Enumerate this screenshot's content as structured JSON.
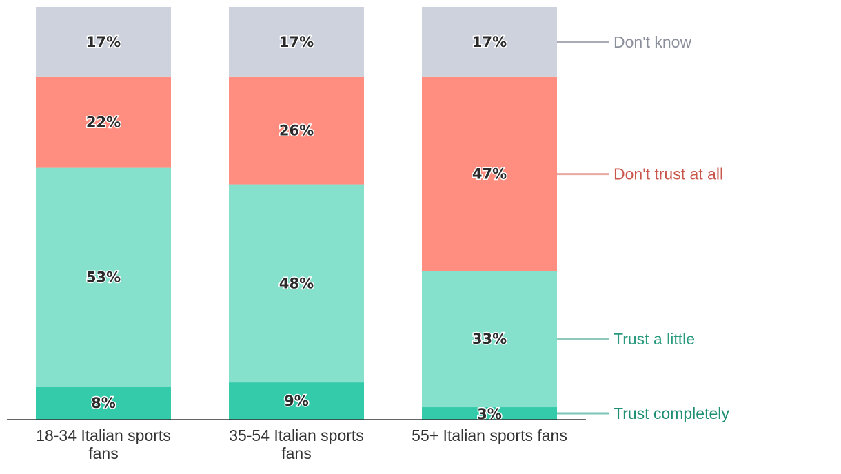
{
  "chart_data": {
    "type": "bar",
    "stacked": true,
    "categories": [
      [
        "18-34 Italian sports",
        "fans"
      ],
      [
        "35-54 Italian sports",
        "fans"
      ],
      [
        "55+ Italian sports fans"
      ]
    ],
    "series": [
      {
        "name": "Trust completely",
        "values": [
          8,
          9,
          3
        ],
        "color": "#33cbaa",
        "label_color": "#1e8f72"
      },
      {
        "name": "Trust a little",
        "values": [
          53,
          48,
          33
        ],
        "color": "#85e0cc",
        "label_color": "#2a9a7e"
      },
      {
        "name": "Don't trust at all",
        "values": [
          22,
          26,
          47
        ],
        "color": "#ff8e80",
        "label_color": "#c9574b"
      },
      {
        "name": "Don't know",
        "values": [
          17,
          17,
          17
        ],
        "color": "#ced2dc",
        "label_color": "#8a8f9a"
      }
    ],
    "value_suffix": "%",
    "ylim": [
      0,
      100
    ],
    "legend": "right, inline with last bar"
  }
}
